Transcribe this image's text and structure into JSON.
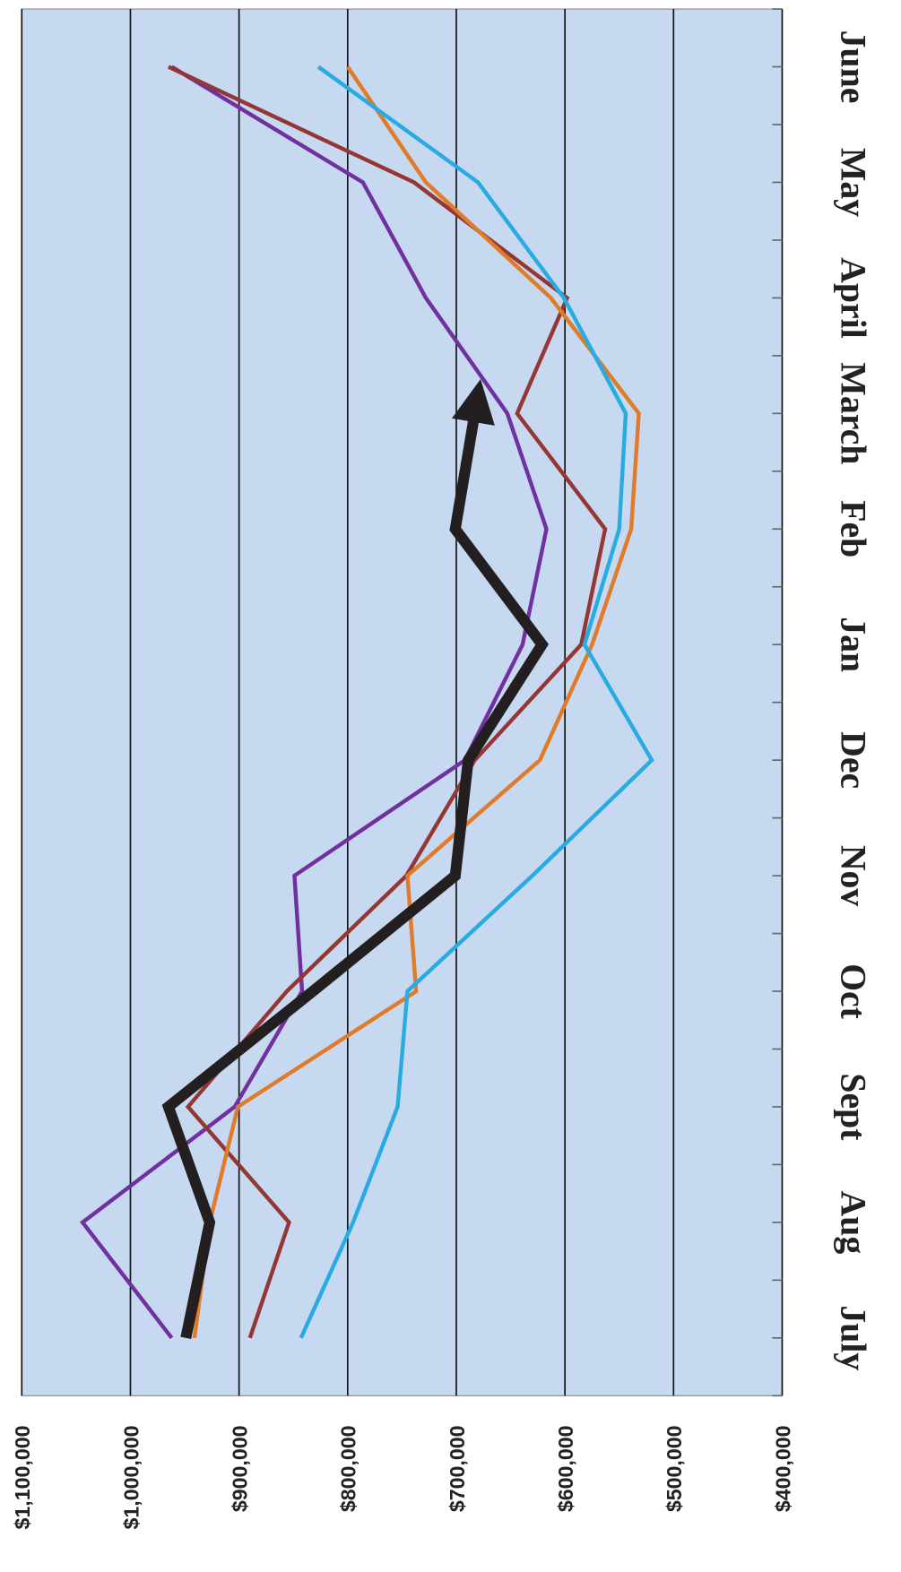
{
  "chart_data": {
    "type": "line",
    "categories": [
      "July",
      "Aug",
      "Sept",
      "Oct",
      "Nov",
      "Dec",
      "Jan",
      "Feb",
      "March",
      "April",
      "May",
      "June"
    ],
    "series": [
      {
        "color": "#7030a0",
        "values": [
          962000,
          1044000,
          904000,
          842000,
          849000,
          692000,
          639000,
          617000,
          653000,
          728000,
          786000,
          962000
        ]
      },
      {
        "color": "#943634",
        "values": [
          890000,
          854000,
          947000,
          856000,
          746000,
          683000,
          585000,
          563000,
          644000,
          598000,
          739000,
          965000
        ]
      },
      {
        "color": "#e07b2a",
        "values": [
          941000,
          927000,
          901000,
          737000,
          745000,
          623000,
          575000,
          539000,
          532000,
          613000,
          728000,
          800000
        ]
      },
      {
        "color": "#29abe2",
        "values": [
          843000,
          795000,
          754000,
          745000,
          630000,
          520000,
          582000,
          550000,
          544000,
          601000,
          680000,
          827000
        ]
      },
      {
        "color": "#231f20",
        "values": [
          949000,
          927000,
          965000,
          832000,
          701000,
          689000,
          621000,
          701000,
          683000,
          null,
          null,
          null
        ]
      }
    ],
    "ylim": [
      400000,
      1100000
    ],
    "yticks": [
      {
        "value": 1100000,
        "label": "$1,100,000"
      },
      {
        "value": 1000000,
        "label": "$1,000,000"
      },
      {
        "value": 900000,
        "label": "$900,000"
      },
      {
        "value": 800000,
        "label": "$800,000"
      },
      {
        "value": 700000,
        "label": "$700,000"
      },
      {
        "value": 600000,
        "label": "$600,000"
      },
      {
        "value": 500000,
        "label": "$500,000"
      },
      {
        "value": 400000,
        "label": "$400,000"
      }
    ],
    "grid": true
  }
}
